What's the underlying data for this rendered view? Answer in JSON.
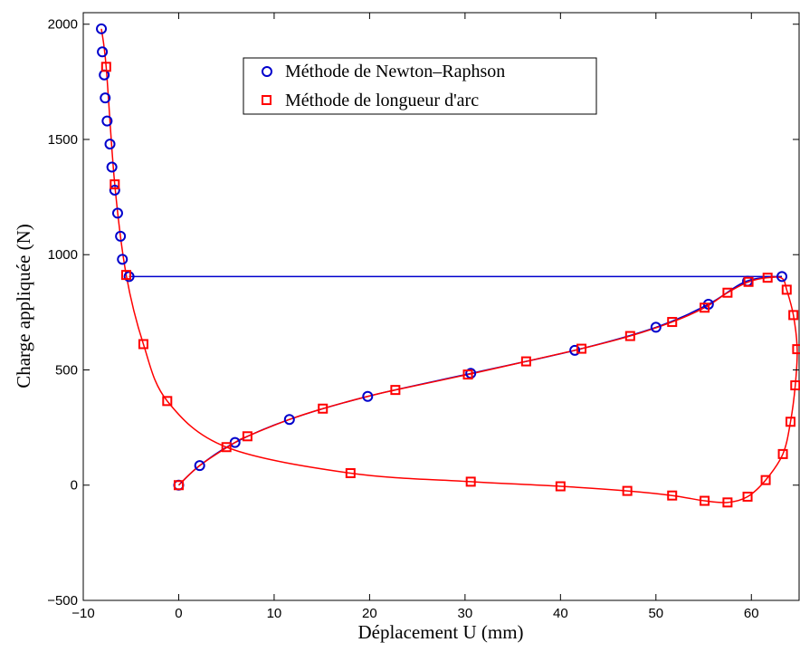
{
  "chart_data": {
    "type": "line",
    "xlabel": "Déplacement U (mm)",
    "ylabel": "Charge appliquée (N)",
    "xlim": [
      -10,
      65
    ],
    "ylim": [
      -500,
      2050
    ],
    "xticks": [
      -10,
      0,
      10,
      20,
      30,
      40,
      50,
      60
    ],
    "yticks": [
      -500,
      0,
      500,
      1000,
      1500,
      2000
    ],
    "xtick_labels": [
      "−10",
      "0",
      "10",
      "20",
      "30",
      "40",
      "50",
      "60"
    ],
    "ytick_labels": [
      "−500",
      "0",
      "500",
      "1000",
      "1500",
      "2000"
    ],
    "grid": false,
    "legend_position": "top-center",
    "series": [
      {
        "name": "Méthode de Newton–Raphson",
        "marker": "circle",
        "color": "#0000cc",
        "line": [
          [
            0,
            0
          ],
          [
            2.2,
            85
          ],
          [
            5.9,
            185
          ],
          [
            11.6,
            285
          ],
          [
            19.8,
            385
          ],
          [
            30.6,
            485
          ],
          [
            41.5,
            585
          ],
          [
            50.0,
            685
          ],
          [
            55.5,
            785
          ],
          [
            59.5,
            885
          ],
          [
            63.2,
            905
          ],
          [
            -5.2,
            905
          ]
        ],
        "points": [
          [
            0,
            0
          ],
          [
            2.2,
            85
          ],
          [
            5.9,
            185
          ],
          [
            11.6,
            285
          ],
          [
            19.8,
            385
          ],
          [
            30.6,
            485
          ],
          [
            41.5,
            585
          ],
          [
            50.0,
            685
          ],
          [
            55.5,
            785
          ],
          [
            59.6,
            885
          ],
          [
            63.2,
            905
          ],
          [
            -5.2,
            905
          ],
          [
            -5.9,
            980
          ],
          [
            -6.1,
            1080
          ],
          [
            -6.4,
            1180
          ],
          [
            -6.7,
            1280
          ],
          [
            -7.0,
            1380
          ],
          [
            -7.2,
            1480
          ],
          [
            -7.5,
            1580
          ],
          [
            -7.7,
            1680
          ],
          [
            -7.8,
            1780
          ],
          [
            -8.0,
            1880
          ],
          [
            -8.1,
            1980
          ]
        ]
      },
      {
        "name": "Méthode de longueur d'arc",
        "marker": "square",
        "color": "#ff0000",
        "line": [
          [
            0,
            0
          ],
          [
            2.2,
            85
          ],
          [
            5.9,
            185
          ],
          [
            7.2,
            212
          ],
          [
            11.6,
            285
          ],
          [
            15.1,
            332
          ],
          [
            19.8,
            385
          ],
          [
            22.7,
            413
          ],
          [
            30.3,
            480
          ],
          [
            36.4,
            537
          ],
          [
            42.2,
            592
          ],
          [
            47.3,
            647
          ],
          [
            51.7,
            708
          ],
          [
            55.1,
            770
          ],
          [
            57.5,
            835
          ],
          [
            59.7,
            882
          ],
          [
            61.7,
            900
          ],
          [
            63.2,
            898
          ],
          [
            63.7,
            848
          ],
          [
            64.4,
            738
          ],
          [
            64.8,
            590
          ],
          [
            64.6,
            433
          ],
          [
            64.1,
            275
          ],
          [
            63.3,
            135
          ],
          [
            61.5,
            22
          ],
          [
            59.6,
            -50
          ],
          [
            57.5,
            -75
          ],
          [
            55.1,
            -68
          ],
          [
            51.7,
            -45
          ],
          [
            47.0,
            -25
          ],
          [
            40.0,
            -5
          ],
          [
            30.6,
            15
          ],
          [
            18.0,
            52
          ],
          [
            5.0,
            165
          ],
          [
            -1.2,
            365
          ],
          [
            -3.7,
            612
          ],
          [
            -5.5,
            912
          ],
          [
            -6.7,
            1305
          ],
          [
            -7.6,
            1815
          ],
          [
            -8.1,
            1980
          ]
        ],
        "points": [
          [
            0,
            0
          ],
          [
            7.2,
            212
          ],
          [
            15.1,
            332
          ],
          [
            22.7,
            413
          ],
          [
            30.3,
            480
          ],
          [
            36.4,
            537
          ],
          [
            42.2,
            592
          ],
          [
            47.3,
            647
          ],
          [
            51.7,
            708
          ],
          [
            55.1,
            770
          ],
          [
            57.5,
            835
          ],
          [
            59.7,
            882
          ],
          [
            61.7,
            900
          ],
          [
            63.7,
            848
          ],
          [
            64.4,
            738
          ],
          [
            64.8,
            590
          ],
          [
            64.6,
            433
          ],
          [
            64.1,
            275
          ],
          [
            63.3,
            135
          ],
          [
            61.5,
            22
          ],
          [
            59.6,
            -50
          ],
          [
            57.5,
            -75
          ],
          [
            55.1,
            -68
          ],
          [
            51.7,
            -45
          ],
          [
            47.0,
            -25
          ],
          [
            40.0,
            -5
          ],
          [
            30.6,
            15
          ],
          [
            18.0,
            52
          ],
          [
            5.0,
            165
          ],
          [
            -1.2,
            365
          ],
          [
            -3.7,
            612
          ],
          [
            -5.5,
            912
          ],
          [
            -6.7,
            1305
          ],
          [
            -7.6,
            1815
          ]
        ]
      }
    ]
  }
}
